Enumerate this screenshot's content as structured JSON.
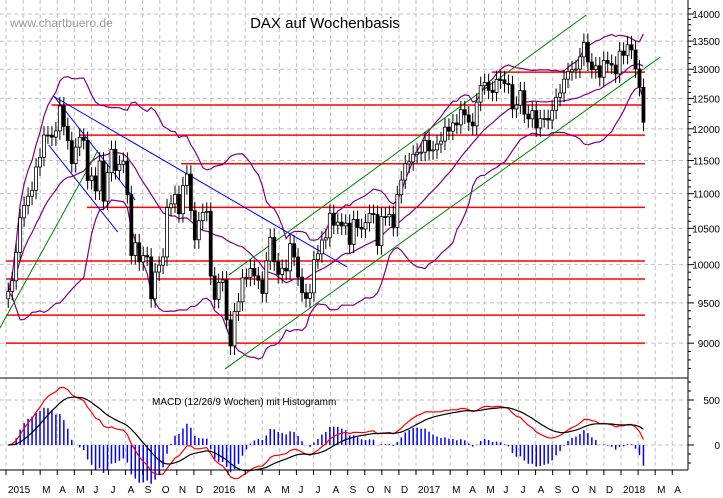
{
  "chart_data": [
    {
      "type": "candlestick",
      "title": "DAX auf Wochenbasis",
      "watermark": "www.chartbuero.de",
      "y_scale": "log",
      "ylim": [
        8600,
        14200
      ],
      "yticks": [
        9000,
        9500,
        10000,
        10500,
        11000,
        11500,
        12000,
        12500,
        13000,
        13500,
        14000
      ],
      "grid": true,
      "start_date": "2015-01-05",
      "frequency": "weekly",
      "closes": [
        9648,
        9787,
        10167,
        10649,
        10828,
        10963,
        11050,
        11401,
        11550,
        11901,
        11899,
        11868,
        11967,
        12375,
        12039,
        11811,
        11454,
        11709,
        11865,
        11815,
        11197,
        11264,
        11040,
        11492,
        10890,
        11316,
        11673,
        11347,
        11443,
        11490,
        10985,
        10124,
        10299,
        10038,
        10123,
        10104,
        9553,
        9902,
        9994,
        10104,
        10795,
        10850,
        10988,
        10708,
        11119,
        11293,
        10752,
        10340,
        10608,
        10727,
        10743,
        9849,
        9545,
        9764,
        9798,
        9286,
        8967,
        9389,
        9513,
        9824,
        9831,
        9950,
        9851,
        9794,
        9622,
        10051,
        10373,
        10038,
        9869,
        9952,
        9917,
        10286,
        10103,
        9834,
        9631,
        9557,
        9629,
        10067,
        10147,
        10337,
        10367,
        10713,
        10544,
        10587,
        10534,
        10573,
        10276,
        10626,
        10511,
        10490,
        10580,
        10711,
        10696,
        10259,
        10667,
        10664,
        10699,
        10513,
        10986,
        11203,
        11449,
        11481,
        11599,
        11629,
        11630,
        11814,
        11651,
        11666,
        11757,
        11804,
        12027,
        11963,
        12095,
        12064,
        12312,
        12225,
        12109,
        12048,
        12438,
        12716,
        12770,
        12638,
        12602,
        12822,
        12815,
        12752,
        12733,
        12325,
        12388,
        12631,
        12240,
        12162,
        12297,
        12014,
        12165,
        12167,
        12142,
        12303,
        12518,
        12592,
        12828,
        12956,
        12991,
        13003,
        13217,
        13478,
        13127,
        12993,
        13059,
        12861,
        13153,
        13103,
        13072,
        12918,
        13319,
        13245,
        13434,
        13340,
        13004,
        12687,
        12107
      ],
      "indicators": {
        "bollinger": {
          "period": 20,
          "stddev": 2,
          "color": "#800080"
        }
      },
      "horizontal_levels": [
        {
          "value": 12950,
          "from": "2017-05-15",
          "color": "#ff0000"
        },
        {
          "value": 12390,
          "from": "2015-03-23",
          "color": "#ff0000"
        },
        {
          "value": 11900,
          "from": "2015-05-11",
          "color": "#ff0000"
        },
        {
          "value": 11450,
          "from": "2015-11-09",
          "color": "#ff0000"
        },
        {
          "value": 10800,
          "from": "2015-05-25",
          "color": "#ff0000"
        },
        {
          "value": 10050,
          "from": "2015-01-01",
          "color": "#ff0000"
        },
        {
          "value": 9810,
          "from": "2015-01-01",
          "color": "#ff0000"
        },
        {
          "value": 9345,
          "from": "2015-01-01",
          "color": "#ff0000"
        },
        {
          "value": 9000,
          "from": "2015-01-01",
          "color": "#ff0000"
        }
      ],
      "trend_lines": [
        {
          "from": [
            "2015-03-25",
            12545
          ],
          "to": [
            "2016-08-30",
            9970
          ],
          "color": "#0000ff"
        },
        {
          "from": [
            "2015-03-28",
            12530
          ],
          "to": [
            "2015-08-19",
            10906
          ],
          "color": "#0000ff"
        },
        {
          "from": [
            "2015-03-18",
            11742
          ],
          "to": [
            "2015-07-19",
            10448
          ],
          "color": "#0000ff"
        },
        {
          "from": [
            "2014-12-21",
            9184
          ],
          "to": [
            "2015-06-14",
            11663
          ],
          "color": "#008000"
        },
        {
          "from": [
            "2016-02-02",
            9863
          ],
          "to": [
            "2017-10-30",
            13981
          ],
          "color": "#008000"
        },
        {
          "from": [
            "2016-01-26",
            8694
          ],
          "to": [
            "2018-03-11",
            13215
          ],
          "color": "#008000"
        }
      ]
    },
    {
      "type": "macd",
      "label": "MACD (12/26/9 Wochen) mit Histogramm",
      "params": [
        12,
        26,
        9
      ],
      "yticks": [
        0,
        500
      ],
      "ylim": [
        -280,
        800
      ],
      "macd_color": "#ff0000",
      "signal_color": "#000000",
      "histogram_color": "#0000ff"
    }
  ],
  "x_axis": {
    "labels": [
      "2015",
      "",
      "M",
      "A",
      "M",
      "J",
      "J",
      "A",
      "S",
      "O",
      "N",
      "D",
      "2016",
      "",
      "M",
      "A",
      "M",
      "J",
      "J",
      "A",
      "S",
      "O",
      "N",
      "D",
      "2017",
      "",
      "M",
      "A",
      "M",
      "J",
      "J",
      "A",
      "S",
      "O",
      "N",
      "D",
      "2018",
      "",
      "M",
      "A"
    ]
  }
}
